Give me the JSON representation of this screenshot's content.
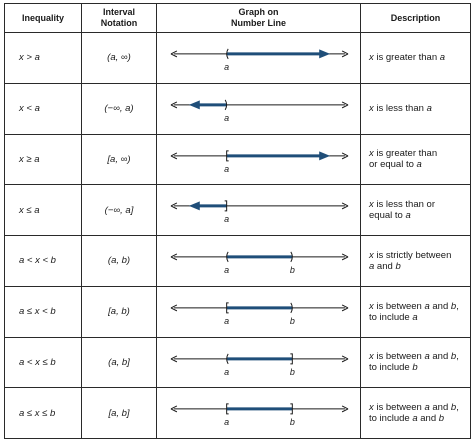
{
  "header": {
    "inequality": "Inequality",
    "interval_line1": "Interval",
    "interval_line2": "Notation",
    "graph_line1": "Graph on",
    "graph_line2": "Number Line",
    "description": "Description"
  },
  "colors": {
    "ray": "#1f4e79",
    "axis": "#1a1a1a",
    "border": "#2a2a2a"
  },
  "rows": [
    {
      "inequality": "x > a",
      "interval": "(a, ∞)",
      "description_parts": [
        {
          "t": "x",
          "i": true
        },
        {
          "t": " is greater than ",
          "i": false
        },
        {
          "t": "a",
          "i": true
        }
      ],
      "graph": {
        "labels": [
          "a"
        ],
        "left_end": "a",
        "left_type": "paren",
        "right_end": "arrow",
        "right_type": "none"
      }
    },
    {
      "inequality": "x < a",
      "interval": "(−∞, a)",
      "description_parts": [
        {
          "t": "x",
          "i": true
        },
        {
          "t": " is less than ",
          "i": false
        },
        {
          "t": "a",
          "i": true
        }
      ],
      "graph": {
        "labels": [
          "a"
        ],
        "left_end": "arrow",
        "left_type": "none",
        "right_end": "a",
        "right_type": "paren"
      }
    },
    {
      "inequality": "x ≥ a",
      "interval": "[a, ∞)",
      "description_parts": [
        {
          "t": "x",
          "i": true
        },
        {
          "t": " is greater than",
          "i": false
        },
        {
          "t": "\n",
          "i": false
        },
        {
          "t": "or equal to ",
          "i": false
        },
        {
          "t": "a",
          "i": true
        }
      ],
      "graph": {
        "labels": [
          "a"
        ],
        "left_end": "a",
        "left_type": "bracket",
        "right_end": "arrow",
        "right_type": "none"
      }
    },
    {
      "inequality": "x ≤ a",
      "interval": "(−∞, a]",
      "description_parts": [
        {
          "t": "x",
          "i": true
        },
        {
          "t": " is less than or",
          "i": false
        },
        {
          "t": "\n",
          "i": false
        },
        {
          "t": "equal to ",
          "i": false
        },
        {
          "t": "a",
          "i": true
        }
      ],
      "graph": {
        "labels": [
          "a"
        ],
        "left_end": "arrow",
        "left_type": "none",
        "right_end": "a",
        "right_type": "bracket"
      }
    },
    {
      "inequality": "a < x < b",
      "interval": "(a, b)",
      "description_parts": [
        {
          "t": "x",
          "i": true
        },
        {
          "t": " is strictly between",
          "i": false
        },
        {
          "t": "\n",
          "i": false
        },
        {
          "t": "a",
          "i": true
        },
        {
          "t": " and ",
          "i": false
        },
        {
          "t": "b",
          "i": true
        }
      ],
      "graph": {
        "labels": [
          "a",
          "b"
        ],
        "left_end": "a",
        "left_type": "paren",
        "right_end": "b",
        "right_type": "paren"
      }
    },
    {
      "inequality": "a ≤ x < b",
      "interval": "[a, b)",
      "description_parts": [
        {
          "t": "x",
          "i": true
        },
        {
          "t": " is between ",
          "i": false
        },
        {
          "t": "a",
          "i": true
        },
        {
          "t": " and ",
          "i": false
        },
        {
          "t": "b",
          "i": true
        },
        {
          "t": ",",
          "i": false
        },
        {
          "t": "\n",
          "i": false
        },
        {
          "t": "to include ",
          "i": false
        },
        {
          "t": "a",
          "i": true
        }
      ],
      "graph": {
        "labels": [
          "a",
          "b"
        ],
        "left_end": "a",
        "left_type": "bracket",
        "right_end": "b",
        "right_type": "paren"
      }
    },
    {
      "inequality": "a < x ≤ b",
      "interval": "(a, b]",
      "description_parts": [
        {
          "t": "x",
          "i": true
        },
        {
          "t": " is between ",
          "i": false
        },
        {
          "t": "a",
          "i": true
        },
        {
          "t": " and ",
          "i": false
        },
        {
          "t": "b",
          "i": true
        },
        {
          "t": ",",
          "i": false
        },
        {
          "t": "\n",
          "i": false
        },
        {
          "t": "to include ",
          "i": false
        },
        {
          "t": "b",
          "i": true
        }
      ],
      "graph": {
        "labels": [
          "a",
          "b"
        ],
        "left_end": "a",
        "left_type": "paren",
        "right_end": "b",
        "right_type": "bracket"
      }
    },
    {
      "inequality": "a ≤ x ≤ b",
      "interval": "[a, b]",
      "description_parts": [
        {
          "t": "x",
          "i": true
        },
        {
          "t": " is between ",
          "i": false
        },
        {
          "t": "a",
          "i": true
        },
        {
          "t": " and ",
          "i": false
        },
        {
          "t": "b",
          "i": true
        },
        {
          "t": ",",
          "i": false
        },
        {
          "t": "\n",
          "i": false
        },
        {
          "t": "to include ",
          "i": false
        },
        {
          "t": "a",
          "i": true
        },
        {
          "t": " and ",
          "i": false
        },
        {
          "t": "b",
          "i": true
        }
      ],
      "graph": {
        "labels": [
          "a",
          "b"
        ],
        "left_end": "a",
        "left_type": "bracket",
        "right_end": "b",
        "right_type": "bracket"
      }
    }
  ]
}
